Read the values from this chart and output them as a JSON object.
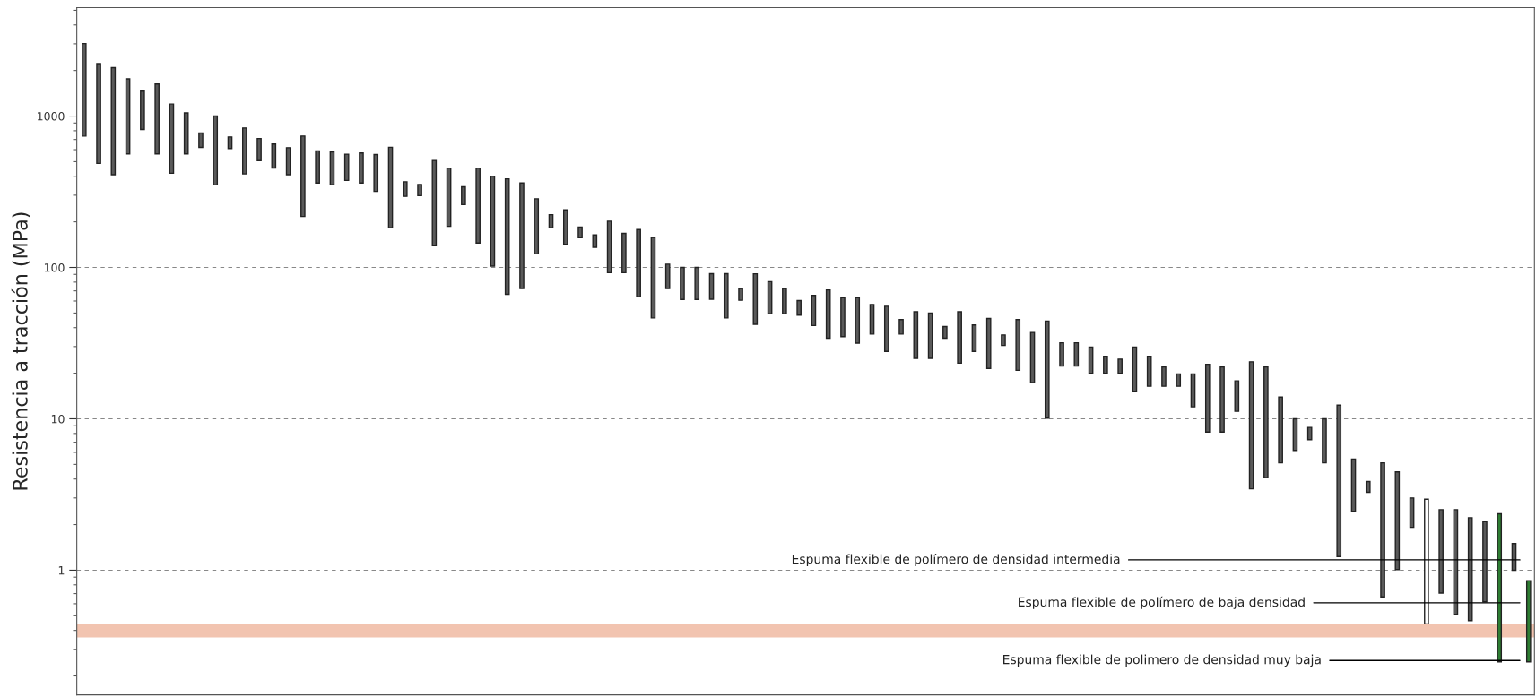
{
  "chart_data": {
    "type": "bar",
    "ylabel": "Resistencia a tracción (MPa)",
    "categories": [
      null,
      null,
      null,
      null,
      null,
      null,
      null,
      null,
      null,
      null,
      null,
      null,
      null,
      null,
      null,
      null,
      null,
      null,
      null,
      null,
      null,
      null,
      null,
      null,
      null,
      null,
      null,
      null,
      null,
      null,
      null,
      null,
      null,
      null,
      null,
      null,
      null,
      null,
      null,
      null,
      null,
      null,
      null,
      null,
      null,
      null,
      null,
      null,
      null,
      null,
      null,
      null,
      null,
      null,
      null,
      null,
      null,
      null,
      null,
      null,
      null,
      null,
      null,
      null,
      null,
      null,
      null,
      null,
      null,
      null,
      null,
      null,
      null,
      null,
      null,
      null,
      null,
      null,
      null,
      null,
      null,
      null,
      null,
      null,
      null,
      null,
      null,
      null,
      null,
      null,
      null,
      null,
      null,
      null,
      null,
      null,
      null,
      null,
      null,
      null
    ],
    "base": [
      738,
      487,
      410,
      563,
      815,
      563,
      419,
      563,
      621,
      351,
      610,
      415,
      508,
      454,
      410,
      217,
      361,
      352,
      376,
      361,
      318,
      183,
      295,
      298,
      139,
      187,
      260,
      145,
      102,
      66.5,
      72.6,
      123,
      183,
      142,
      157,
      136,
      92.3,
      92.3,
      64.1,
      46.4,
      72.6,
      61.4,
      61.4,
      61.7,
      46.4,
      60.7,
      42.1,
      49.5,
      49.5,
      48.4,
      41.3,
      34.1,
      34.9,
      31.6,
      36.3,
      27.9,
      36.3,
      25.1,
      25.1,
      34.1,
      23.3,
      27.9,
      21.5,
      30.5,
      20.9,
      17.4,
      10.1,
      22.3,
      22.3,
      20.0,
      20.0,
      20.0,
      15.2,
      16.4,
      16.4,
      16.4,
      12.0,
      8.18,
      8.18,
      11.2,
      3.45,
      4.08,
      5.12,
      6.18,
      7.28,
      5.12,
      1.23,
      2.45,
      3.27,
      0.666,
      1.01,
      1.92,
      0.442,
      0.706,
      0.512,
      0.464,
      0.618,
      0.248,
      1.0,
      0.248
    ],
    "values": [
      2272,
      1733,
      1680,
      1197,
      645,
      1067,
      781,
      487,
      152,
      649,
      118,
      419,
      203,
      199,
      208,
      521,
      228,
      228,
      184,
      209,
      239,
      439,
      73,
      55,
      370,
      266,
      81,
      308,
      299,
      318.5,
      288.4,
      161,
      40,
      98,
      28,
      28,
      109.7,
      75.7,
      113.9,
      111.6,
      32.4,
      38.6,
      38.6,
      29.3,
      44.6,
      11.9,
      48.7,
      31.1,
      23.1,
      12,
      24,
      36.9,
      28.3,
      31.4,
      20.6,
      27.5,
      8.9,
      25.8,
      24.9,
      6.6,
      27.6,
      13.8,
      24.5,
      5.3,
      24.3,
      19.8,
      34.1,
      9.5,
      9.5,
      9.8,
      5.9,
      4.8,
      14.6,
      9.5,
      5.6,
      3.4,
      7.8,
      14.72,
      13.82,
      6.6,
      20.35,
      17.92,
      8.78,
      3.82,
      1.49,
      4.88,
      11.07,
      2.97,
      0.58,
      4.454,
      3.45,
      1.08,
      2.498,
      1.804,
      1.998,
      1.756,
      1.472,
      2.112,
      0.5,
      0.603
    ],
    "colors": [
      "#5a5a5a",
      "#5a5a5a",
      "#5a5a5a",
      "#5a5a5a",
      "#5a5a5a",
      "#5a5a5a",
      "#5a5a5a",
      "#5a5a5a",
      "#5a5a5a",
      "#5a5a5a",
      "#5a5a5a",
      "#5a5a5a",
      "#5a5a5a",
      "#5a5a5a",
      "#5a5a5a",
      "#5a5a5a",
      "#5a5a5a",
      "#5a5a5a",
      "#5a5a5a",
      "#5a5a5a",
      "#5a5a5a",
      "#5a5a5a",
      "#5a5a5a",
      "#5a5a5a",
      "#5a5a5a",
      "#5a5a5a",
      "#5a5a5a",
      "#5a5a5a",
      "#5a5a5a",
      "#5a5a5a",
      "#5a5a5a",
      "#5a5a5a",
      "#5a5a5a",
      "#5a5a5a",
      "#5a5a5a",
      "#5a5a5a",
      "#5a5a5a",
      "#5a5a5a",
      "#5a5a5a",
      "#5a5a5a",
      "#5a5a5a",
      "#5a5a5a",
      "#5a5a5a",
      "#5a5a5a",
      "#5a5a5a",
      "#5a5a5a",
      "#5a5a5a",
      "#5a5a5a",
      "#5a5a5a",
      "#5a5a5a",
      "#5a5a5a",
      "#5a5a5a",
      "#5a5a5a",
      "#5a5a5a",
      "#5a5a5a",
      "#5a5a5a",
      "#5a5a5a",
      "#5a5a5a",
      "#5a5a5a",
      "#5a5a5a",
      "#5a5a5a",
      "#5a5a5a",
      "#5a5a5a",
      "#5a5a5a",
      "#5a5a5a",
      "#5a5a5a",
      "#5a5a5a",
      "#5a5a5a",
      "#5a5a5a",
      "#5a5a5a",
      "#5a5a5a",
      "#5a5a5a",
      "#5a5a5a",
      "#5a5a5a",
      "#5a5a5a",
      "#5a5a5a",
      "#5a5a5a",
      "#5a5a5a",
      "#5a5a5a",
      "#5a5a5a",
      "#5a5a5a",
      "#5a5a5a",
      "#5a5a5a",
      "#5a5a5a",
      "#5a5a5a",
      "#5a5a5a",
      "#5a5a5a",
      "#5a5a5a",
      "#5a5a5a",
      "#5a5a5a",
      "#5a5a5a",
      "#5a5a5a",
      "#ffffff",
      "#5a5a5a",
      "#5a5a5a",
      "#5a5a5a",
      "#5a5a5a",
      "#2e7d32",
      "#5a5a5a",
      "#2e7d32"
    ],
    "log": "y",
    "ylim": [
      0.15,
      5200
    ],
    "yticks": [
      1,
      10,
      100,
      1000
    ],
    "grid": "y",
    "bands": [
      {
        "axis": "y",
        "from": 0.36,
        "to": 0.44,
        "color": "#f2c4b0"
      }
    ],
    "annotations": [
      "Espuma flexible de polímero de densidad intermedia",
      "Espuma flexible de polímero de baja densidad",
      "Espuma flexible de polimero de densidad muy baja"
    ]
  }
}
